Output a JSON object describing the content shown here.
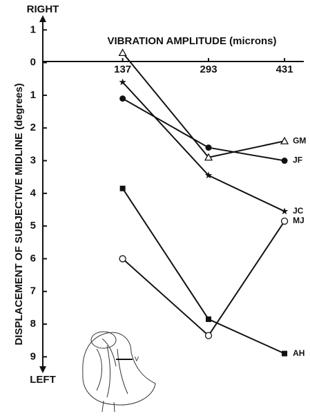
{
  "chart_data": {
    "type": "line",
    "top_label": "RIGHT",
    "bottom_label": "LEFT",
    "y_label": "DISPLACEMENT OF SUBJECTIVE MIDLINE (degrees)",
    "x_label": "VIBRATION AMPLITUDE (microns)",
    "figure_label": "V",
    "x": [
      137,
      293,
      431
    ],
    "xlim": [
      -8,
      466
    ],
    "xticks": [
      137,
      293,
      431
    ],
    "ylim": [
      9.5,
      -1.45
    ],
    "yticks": [
      {
        "value": -1,
        "label": "1"
      },
      0,
      1,
      2,
      3,
      4,
      5,
      6,
      7,
      8,
      9
    ],
    "series": [
      {
        "name": "GM",
        "color": "#111111",
        "marker": "triangle-open",
        "values": [
          -0.3,
          2.9,
          2.4
        ]
      },
      {
        "name": "JF",
        "color": "#111111",
        "marker": "circle-filled",
        "values": [
          1.1,
          2.6,
          3.0
        ]
      },
      {
        "name": "JC",
        "color": "#111111",
        "marker": "star",
        "values": [
          0.6,
          3.45,
          4.55
        ]
      },
      {
        "name": "MJ",
        "color": "#111111",
        "marker": "circle-open",
        "values": [
          6.0,
          8.35,
          4.85
        ]
      },
      {
        "name": "AH",
        "color": "#111111",
        "marker": "square-filled",
        "values": [
          3.85,
          7.85,
          8.9
        ]
      }
    ]
  }
}
